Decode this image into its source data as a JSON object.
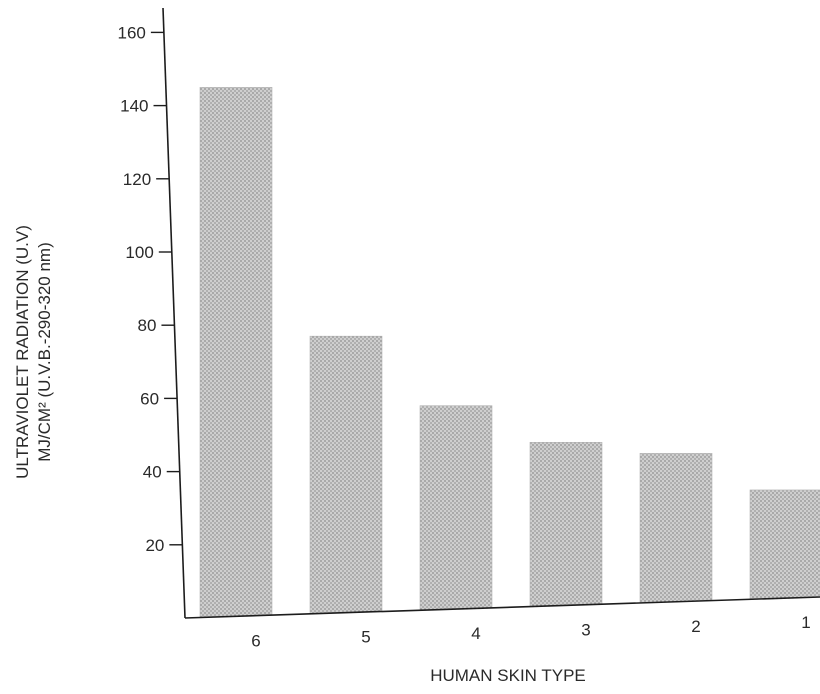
{
  "chart_data": {
    "type": "bar",
    "categories": [
      "6",
      "5",
      "4",
      "3",
      "2",
      "1"
    ],
    "values": [
      145,
      77,
      58,
      48,
      45,
      35
    ],
    "ylim": [
      0,
      160
    ],
    "yticks": [
      20,
      40,
      60,
      80,
      100,
      120,
      140,
      160
    ],
    "xlabel": "HUMAN SKIN TYPE",
    "ylabel_lines": [
      "ULTRAVIOLET RADIATION (U.V)",
      "MJ/CM² (U.V.B.-290-320 nm)"
    ],
    "grid": false,
    "legend": "none",
    "bar_color": "#c8c8c8",
    "bar_pattern": "stippled halftone",
    "axis_color": "#1c1c1c"
  }
}
